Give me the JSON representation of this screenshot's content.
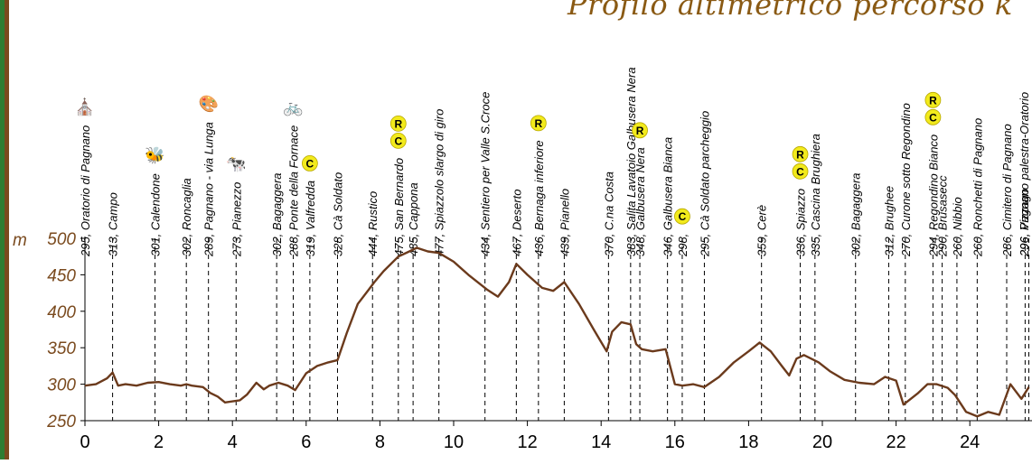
{
  "title": "Profilo altimetrico percorso k",
  "colors": {
    "border_green": "#2e7d32",
    "border_brown": "#7a4a1e",
    "profile": "#6b3a1c",
    "axis_text": "#7a4a1e",
    "badge": "#f2ea1c"
  },
  "chart_data": {
    "type": "line",
    "title": "Profilo altimetrico percorso k",
    "xlabel": "",
    "ylabel": "m",
    "xlim": [
      0,
      25.6
    ],
    "ylim": [
      250,
      500
    ],
    "x_ticks": [
      0,
      2,
      4,
      6,
      8,
      10,
      12,
      14,
      16,
      18,
      20,
      22,
      24
    ],
    "y_ticks": [
      250,
      300,
      350,
      400,
      450,
      500
    ],
    "grid": false,
    "series": [
      {
        "name": "",
        "x": [
          0,
          0.3,
          0.6,
          0.75,
          0.9,
          1.1,
          1.4,
          1.7,
          2.0,
          2.3,
          2.6,
          2.75,
          2.9,
          3.2,
          3.4,
          3.6,
          3.8,
          4.2,
          4.4,
          4.65,
          4.85,
          5.0,
          5.25,
          5.5,
          5.7,
          6.0,
          6.3,
          6.6,
          6.85,
          7.1,
          7.4,
          7.7,
          7.85,
          8.1,
          8.5,
          8.8,
          9.0,
          9.3,
          9.6,
          10.0,
          10.4,
          10.9,
          11.2,
          11.5,
          11.7,
          12.0,
          12.4,
          12.7,
          13.0,
          13.4,
          13.8,
          14.15,
          14.3,
          14.55,
          14.8,
          14.95,
          15.1,
          15.4,
          15.75,
          16.0,
          16.2,
          16.5,
          16.8,
          17.2,
          17.6,
          18.0,
          18.3,
          18.6,
          18.9,
          19.1,
          19.3,
          19.5,
          19.9,
          20.2,
          20.6,
          21.0,
          21.4,
          21.7,
          22.0,
          22.2,
          22.6,
          22.85,
          23.1,
          23.4,
          23.6,
          23.9,
          24.2,
          24.5,
          24.8,
          25.1,
          25.4,
          25.6
        ],
        "y": [
          298,
          300,
          308,
          316,
          298,
          300,
          298,
          302,
          303,
          300,
          298,
          300,
          298,
          296,
          288,
          283,
          275,
          278,
          286,
          302,
          293,
          298,
          302,
          298,
          292,
          315,
          325,
          330,
          333,
          370,
          410,
          430,
          440,
          455,
          475,
          482,
          487,
          482,
          480,
          468,
          450,
          430,
          420,
          440,
          465,
          450,
          432,
          428,
          440,
          410,
          375,
          345,
          372,
          385,
          382,
          355,
          348,
          345,
          348,
          300,
          298,
          300,
          296,
          310,
          330,
          345,
          357,
          345,
          325,
          312,
          335,
          340,
          330,
          318,
          306,
          302,
          300,
          310,
          305,
          272,
          288,
          300,
          300,
          295,
          285,
          262,
          256,
          262,
          258,
          300,
          280,
          296
        ]
      }
    ],
    "waypoints": [
      {
        "km": 0.0,
        "label": "295, Oratorio di Pagnano",
        "icon": "chapel-icon"
      },
      {
        "km": 0.75,
        "label": "313, Campo",
        "icon": ""
      },
      {
        "km": 1.9,
        "label": "301, Calendone",
        "icon": "bee-icon"
      },
      {
        "km": 2.75,
        "label": "302, Roncaglia",
        "icon": ""
      },
      {
        "km": 3.35,
        "label": "289, Pagnano - via Lunga",
        "icon": "palette-icon"
      },
      {
        "km": 4.1,
        "label": "273, Pianezzo",
        "icon": "cow-icon"
      },
      {
        "km": 5.2,
        "label": "302, Bagaggera",
        "icon": ""
      },
      {
        "km": 5.65,
        "label": "288, Ponte della Fornace",
        "icon": "bike-icon"
      },
      {
        "km": 6.1,
        "label": "319, Valfredda",
        "badges": [
          "C"
        ]
      },
      {
        "km": 6.85,
        "label": "328, Cà Soldato",
        "icon": ""
      },
      {
        "km": 7.8,
        "label": "444, Rustico",
        "icon": ""
      },
      {
        "km": 8.5,
        "label": "475, San Bernardo",
        "badges": [
          "C",
          "R"
        ]
      },
      {
        "km": 8.9,
        "label": "485, Cappona",
        "icon": ""
      },
      {
        "km": 9.6,
        "label": "477, Spiazzolo slargo di giro",
        "icon": ""
      },
      {
        "km": 10.85,
        "label": "434, Sentiero per Valle S.Croce",
        "icon": ""
      },
      {
        "km": 11.7,
        "label": "467, Deserto",
        "icon": ""
      },
      {
        "km": 12.3,
        "label": "436, Bernaga inferiore",
        "badges": [
          "R"
        ]
      },
      {
        "km": 13.0,
        "label": "439, Pianello",
        "icon": ""
      },
      {
        "km": 14.2,
        "label": "370, C.na Costa",
        "icon": ""
      },
      {
        "km": 14.8,
        "label": "383, Salita Lavatoio Galbusera Nera",
        "icon": ""
      },
      {
        "km": 15.05,
        "label": "348, Galbusera Nera",
        "badges": [
          "R"
        ]
      },
      {
        "km": 15.8,
        "label": "346, Galbusera Bianca",
        "icon": ""
      },
      {
        "km": 16.2,
        "label": "298,",
        "badges": [
          "C"
        ]
      },
      {
        "km": 16.8,
        "label": "295, Cà Soldato parcheggio",
        "icon": ""
      },
      {
        "km": 18.35,
        "label": "359, Cerè",
        "icon": ""
      },
      {
        "km": 19.4,
        "label": "336, Spiazzo",
        "badges": [
          "C",
          "R"
        ]
      },
      {
        "km": 19.8,
        "label": "335, Cascina Brughiera",
        "icon": ""
      },
      {
        "km": 20.9,
        "label": "302, Bagaggera",
        "icon": ""
      },
      {
        "km": 21.8,
        "label": "312, Brughee",
        "icon": ""
      },
      {
        "km": 22.25,
        "label": "270, Curone sotto Regondino",
        "icon": ""
      },
      {
        "km": 23.0,
        "label": "294, Regondino Bianco",
        "badges": [
          "C",
          "R"
        ]
      },
      {
        "km": 23.25,
        "label": "290, Brusasecc",
        "icon": ""
      },
      {
        "km": 23.65,
        "label": "260, Nibbio",
        "icon": ""
      },
      {
        "km": 24.2,
        "label": "260, Ronchetti di Pagnano",
        "icon": ""
      },
      {
        "km": 25.0,
        "label": "286, Cimitero di Pagnano",
        "icon": ""
      },
      {
        "km": 25.5,
        "label": "296, Vizzago",
        "icon": ""
      },
      {
        "km": 25.6,
        "label": "296, Pagnano palestra-Oratorio",
        "icon": ""
      }
    ]
  }
}
